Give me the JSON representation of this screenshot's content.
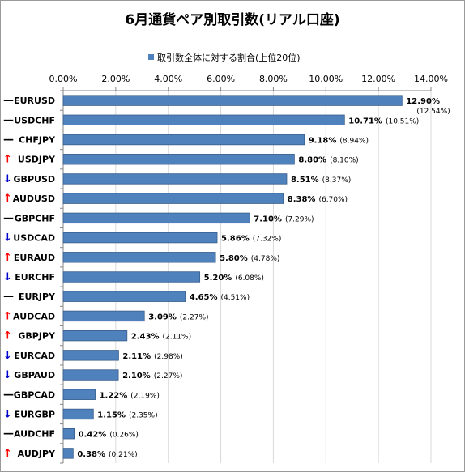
{
  "chart_data": {
    "type": "bar",
    "orientation": "horizontal",
    "title": "6月通貨ペア別取引数(リアル口座)",
    "legend": {
      "label": "取引数全体に対する割合(上位20位)",
      "placement": "top"
    },
    "x_axis": {
      "position": "top",
      "min": 0,
      "max": 14,
      "ticks": [
        "0.00%",
        "2.00%",
        "4.00%",
        "6.00%",
        "8.00%",
        "10.00%",
        "12.00%",
        "14.00%"
      ],
      "grid": true
    },
    "categories": [
      "EURUSD",
      "USDCHF",
      "CHFJPY",
      "USDJPY",
      "GBPUSD",
      "AUDUSD",
      "GBPCHF",
      "USDCAD",
      "EURAUD",
      "EURCHF",
      "EURJPY",
      "AUDCAD",
      "GBPJPY",
      "EURCAD",
      "GBPAUD",
      "GBPCAD",
      "EURGBP",
      "AUDCHF",
      "AUDJPY"
    ],
    "trend": [
      "—",
      "—",
      "—",
      "↑",
      "↓",
      "↑",
      "—",
      "↓",
      "↑",
      "↓",
      "—",
      "↑",
      "↑",
      "↓",
      "↓",
      "—",
      "↓",
      "—",
      "↑"
    ],
    "values": [
      12.9,
      10.71,
      9.18,
      8.8,
      8.51,
      8.38,
      7.1,
      5.86,
      5.8,
      5.2,
      4.65,
      3.09,
      2.43,
      2.11,
      2.1,
      1.22,
      1.15,
      0.42,
      0.38
    ],
    "value_labels": [
      "12.90%",
      "10.71%",
      "9.18%",
      "8.80%",
      "8.51%",
      "8.38%",
      "7.10%",
      "5.86%",
      "5.80%",
      "5.20%",
      "4.65%",
      "3.09%",
      "2.43%",
      "2.11%",
      "2.10%",
      "1.22%",
      "1.15%",
      "0.42%",
      "0.38%"
    ],
    "previous_labels": [
      "(12.54%)",
      "(10.51%)",
      "(8.94%)",
      "(8.10%)",
      "(8.37%)",
      "(6.70%)",
      "(7.29%)",
      "(7.32%)",
      "(4.78%)",
      "(6.08%)",
      "(4.51%)",
      "(2.27%)",
      "(2.11%)",
      "(2.98%)",
      "(2.27%)",
      "(2.19%)",
      "(2.35%)",
      "(0.26%)",
      "(0.21%)"
    ],
    "colors": {
      "bar": "#4F81BD",
      "bar_edge": "#385D8A",
      "up": "#FF0000",
      "down": "#0000CC",
      "flat": "#000000",
      "grid": "#D9D9D9",
      "axis": "#868686"
    }
  }
}
